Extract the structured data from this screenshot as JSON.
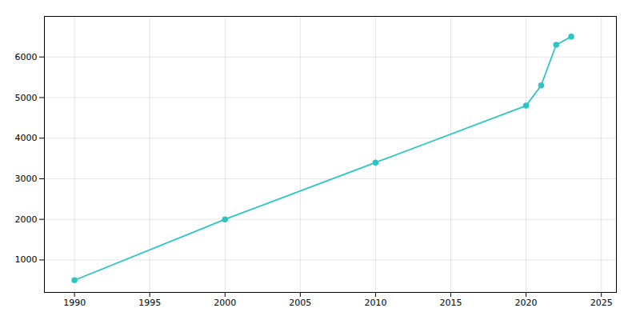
{
  "chart_data": {
    "type": "line",
    "x": [
      1990,
      2000,
      2010,
      2020,
      2021,
      2022,
      2023
    ],
    "values": [
      500,
      2000,
      3400,
      4800,
      5300,
      6300,
      6500
    ],
    "color": "#2CC4C4",
    "marker": "circle",
    "xlim": [
      1988,
      2026
    ],
    "ylim": [
      200,
      7000
    ],
    "xticks": [
      1990,
      1995,
      2000,
      2005,
      2010,
      2015,
      2020,
      2025
    ],
    "yticks": [
      1000,
      2000,
      3000,
      4000,
      5000,
      6000
    ],
    "grid": true
  }
}
